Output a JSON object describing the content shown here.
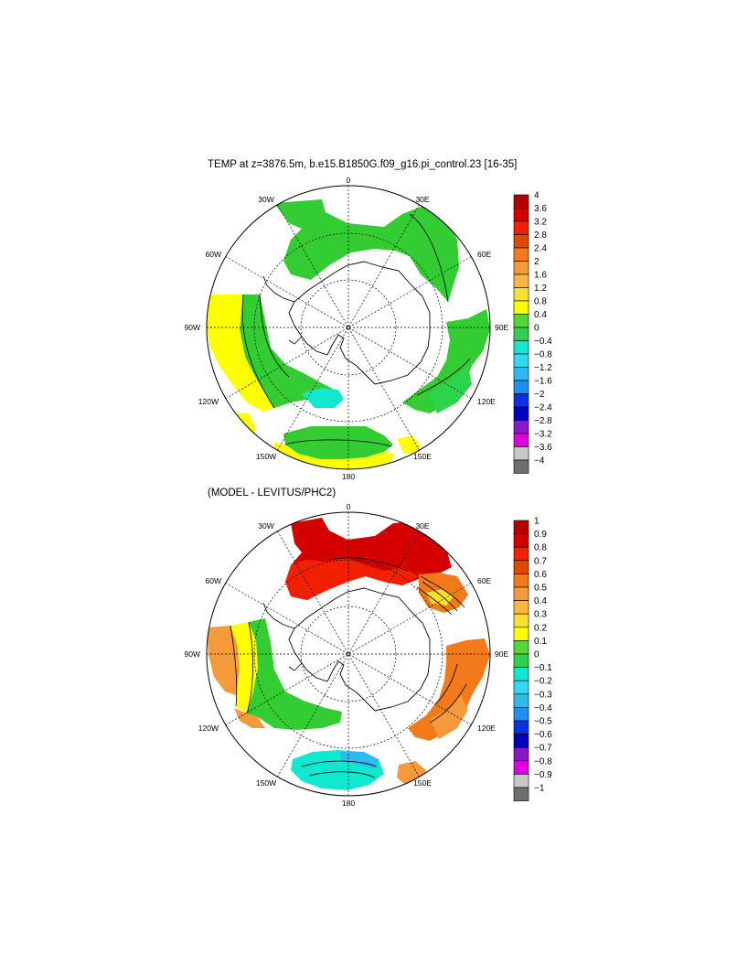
{
  "panels": [
    {
      "title": "TEMP at z=3876.5m, b.e15.B1850G.f09_g16.pi_control.23 [16-35]",
      "lon_labels": [
        "0",
        "30E",
        "60E",
        "90E",
        "120E",
        "150E",
        "180",
        "150W",
        "120W",
        "90W",
        "60W",
        "30W"
      ],
      "colorbar": {
        "labels": [
          "4",
          "3.6",
          "3.2",
          "2.8",
          "2.4",
          "2",
          "1.6",
          "1.2",
          "0.8",
          "0.4",
          "0",
          "−0.4",
          "−0.8",
          "−1.2",
          "−1.6",
          "−2",
          "−2.4",
          "−2.8",
          "−3.2",
          "−3.6",
          "−4"
        ]
      }
    },
    {
      "title": "(MODEL - LEVITUS/PHC2)",
      "lon_labels": [
        "0",
        "30E",
        "60E",
        "90E",
        "120E",
        "150E",
        "180",
        "150W",
        "120W",
        "90W",
        "60W",
        "30W"
      ],
      "colorbar": {
        "labels": [
          "1",
          "0.9",
          "0.8",
          "0.7",
          "0.6",
          "0.5",
          "0.4",
          "0.3",
          "0.2",
          "0.1",
          "0",
          "−0.1",
          "−0.2",
          "−0.3",
          "−0.4",
          "−0.5",
          "−0.6",
          "−0.7",
          "−0.8",
          "−0.9",
          "−1"
        ]
      }
    }
  ],
  "colors": {
    "scale": [
      "#b30000",
      "#d40000",
      "#f02000",
      "#e04a00",
      "#f27a1a",
      "#f59a3a",
      "#f8b840",
      "#fbe030",
      "#ffff00",
      "#52d833",
      "#2fcf4f",
      "#10e8d0",
      "#30d8f0",
      "#30b8f0",
      "#2090f0",
      "#0a30e8",
      "#0000c0",
      "#8a18c8",
      "#e000e0",
      "#c8c8c8",
      "#6e6e6e"
    ],
    "land": "#ffffff",
    "line": "#000000"
  }
}
